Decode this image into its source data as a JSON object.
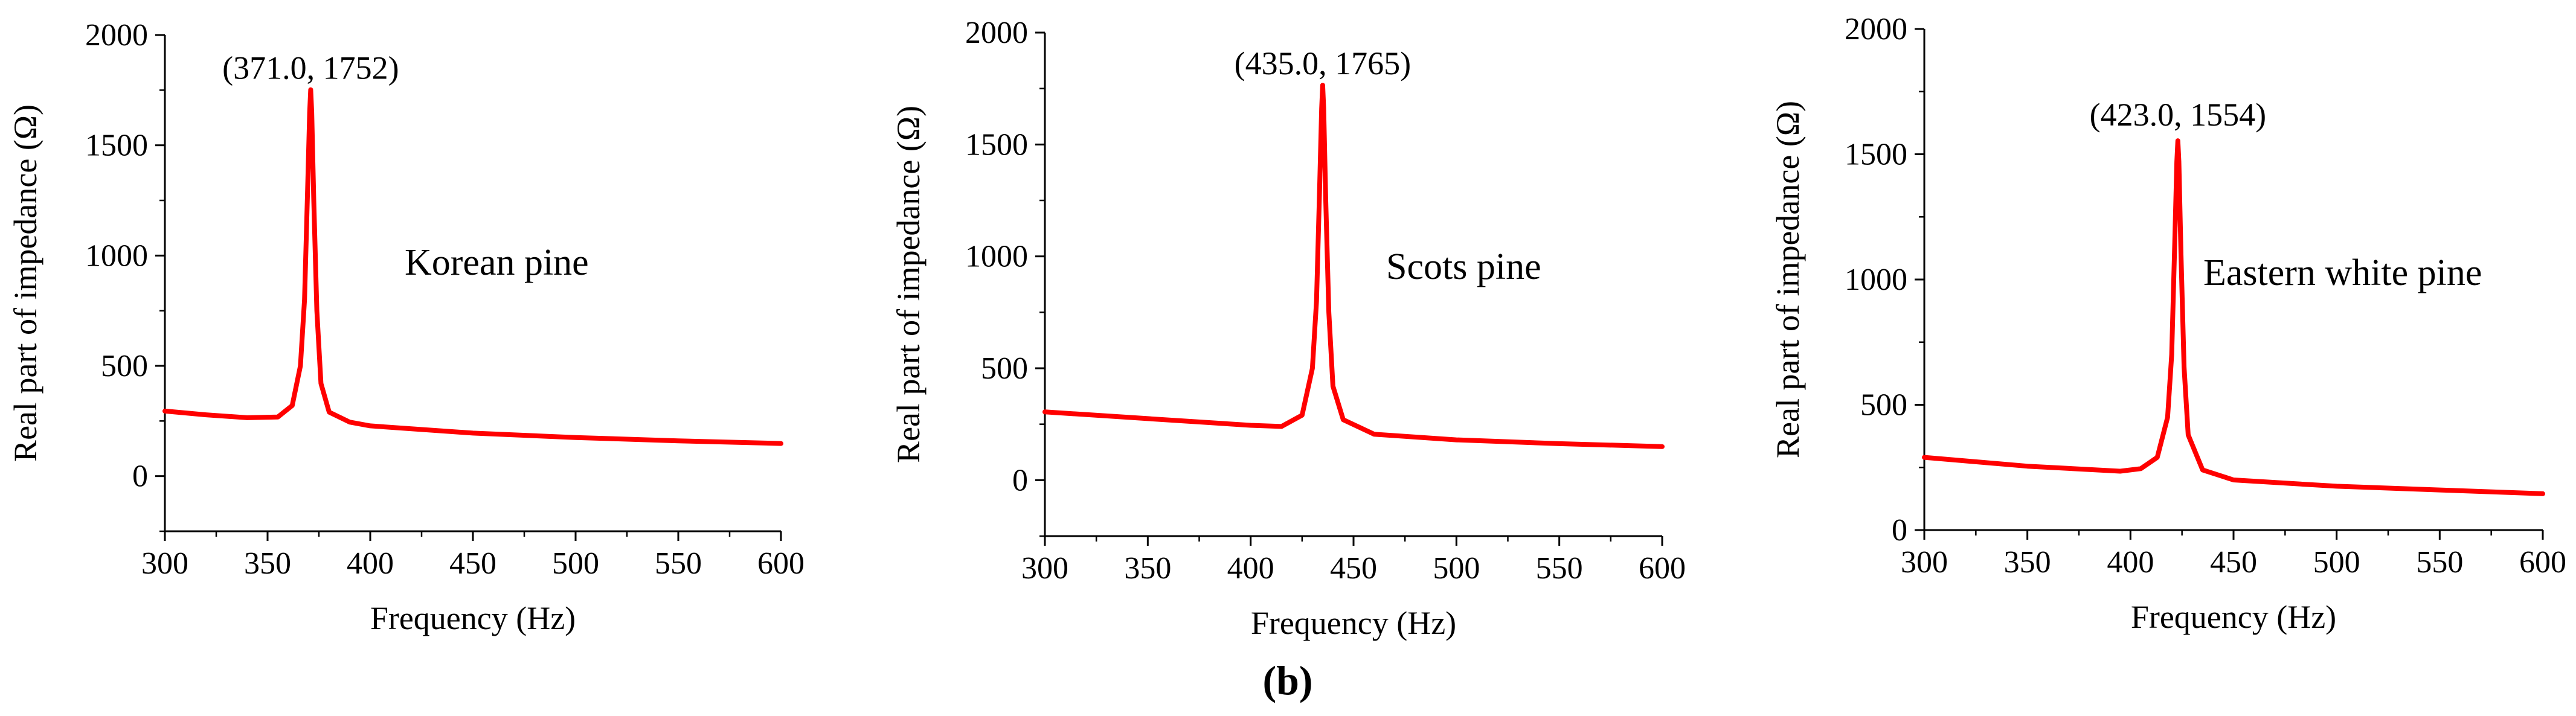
{
  "figure": {
    "caption": "(b)"
  },
  "chart_data": [
    {
      "type": "line",
      "title": "",
      "xlabel": "Frequency (Hz)",
      "ylabel": "Real part of impedance (Ω)",
      "xlim": [
        300,
        600
      ],
      "ylim": [
        -250,
        2000
      ],
      "xticks": [
        300,
        350,
        400,
        450,
        500,
        550,
        600
      ],
      "yticks": [
        0,
        500,
        1000,
        1500,
        2000
      ],
      "label": "Korean pine",
      "annotation": "(371.0,  1752)",
      "peak": [
        371.0,
        1752
      ],
      "color": "#ff0000",
      "grid": false,
      "series": [
        {
          "x": [
            300,
            320,
            340,
            355,
            362,
            366,
            368,
            369.5,
            370.5,
            371.0,
            371.5,
            372.5,
            374,
            376,
            380,
            390,
            400,
            450,
            500,
            550,
            600
          ],
          "y": [
            295,
            278,
            265,
            268,
            320,
            500,
            800,
            1300,
            1650,
            1752,
            1650,
            1250,
            750,
            420,
            290,
            245,
            228,
            195,
            175,
            160,
            148
          ]
        }
      ]
    },
    {
      "type": "line",
      "title": "",
      "xlabel": "Frequency (Hz)",
      "ylabel": "Real part of impedance (Ω)",
      "xlim": [
        300,
        600
      ],
      "ylim": [
        -250,
        2000
      ],
      "xticks": [
        300,
        350,
        400,
        450,
        500,
        550,
        600
      ],
      "yticks": [
        0,
        500,
        1000,
        1500,
        2000
      ],
      "label": "Scots pine",
      "annotation": "(435.0, 1765)",
      "peak": [
        435.0,
        1765
      ],
      "color": "#ff0000",
      "grid": false,
      "series": [
        {
          "x": [
            300,
            350,
            400,
            415,
            425,
            430,
            432,
            433.5,
            434.5,
            435.0,
            435.5,
            436.5,
            438,
            440,
            445,
            460,
            500,
            550,
            600
          ],
          "y": [
            305,
            275,
            245,
            240,
            290,
            500,
            800,
            1300,
            1660,
            1765,
            1660,
            1250,
            750,
            420,
            270,
            205,
            180,
            163,
            150
          ]
        }
      ]
    },
    {
      "type": "line",
      "title": "",
      "xlabel": "Frequency (Hz)",
      "ylabel": "Real part of impedance (Ω)",
      "xlim": [
        300,
        600
      ],
      "ylim": [
        0,
        2000
      ],
      "xticks": [
        300,
        350,
        400,
        450,
        500,
        550,
        600
      ],
      "yticks": [
        0,
        500,
        1000,
        1500,
        2000
      ],
      "label": "Eastern white pine",
      "annotation": "(423.0, 1554)",
      "peak": [
        423.0,
        1554
      ],
      "color": "#ff0000",
      "grid": false,
      "series": [
        {
          "x": [
            300,
            350,
            395,
            405,
            413,
            418,
            420,
            421.5,
            422.5,
            423.0,
            423.5,
            424.5,
            426,
            428,
            435,
            450,
            500,
            550,
            600
          ],
          "y": [
            290,
            255,
            235,
            245,
            290,
            450,
            700,
            1150,
            1470,
            1554,
            1470,
            1100,
            650,
            380,
            240,
            200,
            175,
            160,
            145
          ]
        }
      ]
    }
  ]
}
